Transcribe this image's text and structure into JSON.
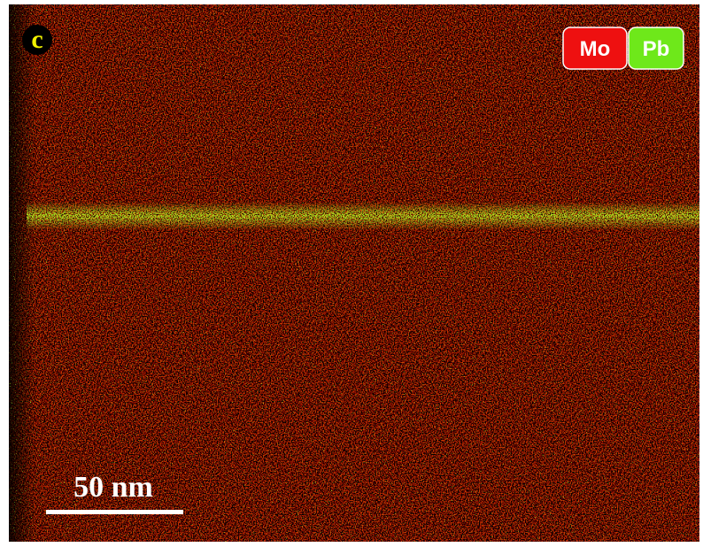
{
  "panel_label": "c",
  "legend": {
    "items": [
      "Mo",
      "Pb"
    ]
  },
  "scale_bar": {
    "label": "50 nm"
  }
}
